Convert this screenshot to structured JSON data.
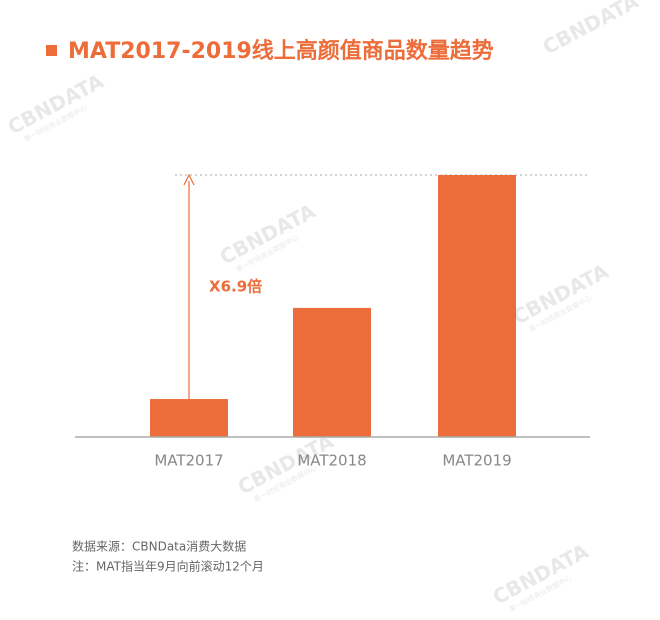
{
  "chart_data": {
    "type": "bar",
    "title": "MAT2017-2019线上高颜值商品数量趋势",
    "categories": [
      "MAT2017",
      "MAT2018",
      "MAT2019"
    ],
    "values": [
      1,
      3.4,
      6.9
    ],
    "color": "#ED6D3A",
    "ylim": [
      0,
      6.9
    ],
    "annotation": "X6.9倍",
    "source": "数据来源：CBNData消费大数据",
    "note": "注：MAT指当年9月向前滚动12个月",
    "watermark": "CBNDATA",
    "watermark_sub": "第一财经商业数据中心"
  }
}
